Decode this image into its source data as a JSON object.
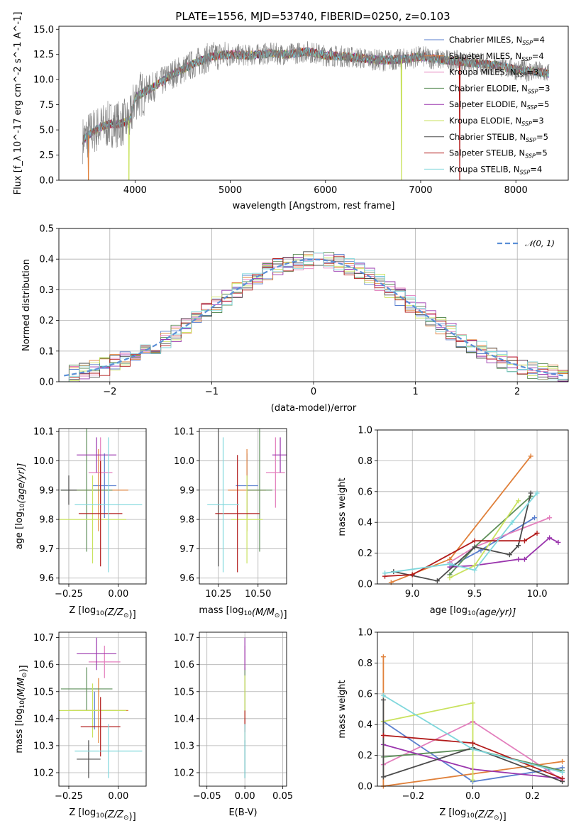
{
  "figure": {
    "title": "PLATE=1556, MJD=53740, FIBERID=0250, z=0.103",
    "colors": {
      "frame": "#000000",
      "grid": "#b0b0b0",
      "spectrum_data": "#7f7f7f",
      "normal_curve": "#5b8fd6",
      "models": [
        "#5a7fcf",
        "#e0803a",
        "#e37fbd",
        "#5e8f5a",
        "#9a35ad",
        "#c9e25e",
        "#4b4b4b",
        "#b21b1b",
        "#7fd7dc"
      ]
    }
  },
  "chart_data": [
    {
      "id": "spectrum",
      "type": "line",
      "title": "PLATE=1556, MJD=53740, FIBERID=0250, z=0.103",
      "xlabel": "wavelength [Angstrom, rest frame]",
      "ylabel": "Flux [f_λ 10^-17 erg cm^-2 s^-1 A^-1]",
      "xlim": [
        3200,
        8550
      ],
      "ylim": [
        0,
        15.3
      ],
      "xticks": [
        4000,
        5000,
        6000,
        7000,
        8000
      ],
      "yticks": [
        0.0,
        2.5,
        5.0,
        7.5,
        10.0,
        12.5,
        15.0
      ],
      "ytick_labels": [
        "0.0",
        "2.5",
        "5.0",
        "7.5",
        "10.0",
        "12.5",
        "15.0"
      ],
      "grid": false,
      "legend_position": "right",
      "continuum": {
        "x": [
          3450,
          3550,
          3650,
          3750,
          3850,
          3950,
          4000,
          4100,
          4200,
          4300,
          4400,
          4500,
          4600,
          4700,
          4800,
          5000,
          5200,
          5400,
          5600,
          5800,
          6000,
          6200,
          6400,
          6600,
          6800,
          7000,
          7200,
          7400,
          7600,
          7800,
          8000,
          8200,
          8350
        ],
        "y": [
          4.0,
          4.8,
          5.3,
          5.6,
          5.6,
          6.0,
          8.2,
          8.8,
          9.3,
          9.9,
          10.6,
          11.0,
          11.5,
          11.9,
          12.3,
          12.5,
          12.4,
          12.6,
          12.5,
          12.8,
          12.4,
          12.3,
          12.1,
          11.9,
          12.0,
          12.3,
          12.0,
          11.8,
          11.6,
          11.4,
          11.0,
          10.8,
          10.6
        ]
      },
      "model_dropouts": [
        {
          "series": "Salpeter MILES, N_SSP=4",
          "x": 3510
        },
        {
          "series": "Kroupa ELODIE, N_SSP=3",
          "x": 3935
        },
        {
          "series": "Kroupa ELODIE, N_SSP=3",
          "x": 6800
        },
        {
          "series": "Salpeter STELIB, N_SSP=5",
          "x": 7410
        }
      ],
      "series": [
        {
          "name": "Chabrier MILES, N_SSP=4",
          "label_base": "Chabrier MILES, N",
          "label_sub": "SSP",
          "label_tail": "=4"
        },
        {
          "name": "Salpeter MILES, N_SSP=4",
          "label_base": "Salpeter MILES, N",
          "label_sub": "SSP",
          "label_tail": "=4"
        },
        {
          "name": "Kroupa MILES, N_SSP=3",
          "label_base": "Kroupa MILES, N",
          "label_sub": "SSP",
          "label_tail": "=3"
        },
        {
          "name": "Chabrier ELODIE, N_SSP=3",
          "label_base": "Chabrier ELODIE, N",
          "label_sub": "SSP",
          "label_tail": "=3"
        },
        {
          "name": "Salpeter ELODIE, N_SSP=5",
          "label_base": "Salpeter ELODIE, N",
          "label_sub": "SSP",
          "label_tail": "=5"
        },
        {
          "name": "Kroupa ELODIE, N_SSP=3",
          "label_base": "Kroupa ELODIE, N",
          "label_sub": "SSP",
          "label_tail": "=3"
        },
        {
          "name": "Chabrier STELIB, N_SSP=5",
          "label_base": "Chabrier STELIB, N",
          "label_sub": "SSP",
          "label_tail": "=5"
        },
        {
          "name": "Salpeter STELIB, N_SSP=5",
          "label_base": "Salpeter STELIB, N",
          "label_sub": "SSP",
          "label_tail": "=5"
        },
        {
          "name": "Kroupa STELIB, N_SSP=4",
          "label_base": "Kroupa STELIB, N",
          "label_sub": "SSP",
          "label_tail": "=4"
        }
      ]
    },
    {
      "id": "residuals",
      "type": "line",
      "xlabel": "(data-model)/error",
      "ylabel": "Normed distribution",
      "xlim": [
        -2.5,
        2.5
      ],
      "ylim": [
        0,
        0.5
      ],
      "xticks": [
        -2,
        -1,
        0,
        1,
        2
      ],
      "xtick_labels": [
        "−2",
        "−1",
        "0",
        "1",
        "2"
      ],
      "yticks": [
        0.0,
        0.1,
        0.2,
        0.3,
        0.4,
        0.5
      ],
      "ytick_labels": [
        "0.0",
        "0.1",
        "0.2",
        "0.3",
        "0.4",
        "0.5"
      ],
      "grid": true,
      "legend_position": "top-right",
      "bin_width": 0.1,
      "histograms_note": "one step histogram per model series; normal reference curve dashed",
      "reference": {
        "name": "N(0,1)",
        "label": "𝒩(0, 1)",
        "x_range": [
          -2.45,
          2.45
        ]
      }
    },
    {
      "id": "age_vs_Z",
      "type": "scatter",
      "xlabel_text": "Z [log",
      "xlabel_sub": "10",
      "xlabel_tail": "(Z/Z",
      "xlabel_sub2": "⊙",
      "xlabel_end": ")]",
      "ylabel": "age [log10(age/yr)]",
      "ylabel_text": "age  [log",
      "ylabel_sub": "10",
      "ylabel_tail": "(age/yr)]",
      "xlim": [
        -0.3,
        0.14
      ],
      "ylim": [
        9.58,
        10.11
      ],
      "xticks": [
        -0.25,
        0.0
      ],
      "xtick_labels": [
        "−0.25",
        "0.00"
      ],
      "yticks": [
        9.6,
        9.7,
        9.8,
        9.9,
        10.0,
        10.1
      ],
      "ytick_labels": [
        "9.6",
        "9.7",
        "9.8",
        "9.9",
        "10.0",
        "10.1"
      ],
      "grid": true,
      "points": [
        {
          "x": -0.07,
          "xerr": 0.06,
          "y": 9.915,
          "yerr": 0.11
        },
        {
          "x": -0.1,
          "xerr": 0.15,
          "y": 9.9,
          "yerr": 0.14
        },
        {
          "x": -0.09,
          "xerr": 0.06,
          "y": 9.96,
          "yerr": 0.12
        },
        {
          "x": -0.16,
          "xerr": 0.13,
          "y": 9.9,
          "yerr": 0.21
        },
        {
          "x": -0.11,
          "xerr": 0.1,
          "y": 10.02,
          "yerr": 0.06
        },
        {
          "x": -0.13,
          "xerr": 0.17,
          "y": 9.8,
          "yerr": 0.15
        },
        {
          "x": -0.25,
          "xerr": 0.04,
          "y": 9.9,
          "yerr": 0.05
        },
        {
          "x": -0.09,
          "xerr": 0.11,
          "y": 9.82,
          "yerr": 0.18
        },
        {
          "x": -0.05,
          "xerr": 0.17,
          "y": 9.85,
          "yerr": 0.23
        }
      ]
    },
    {
      "id": "age_vs_mass",
      "type": "scatter",
      "xlabel_text": "mass [log",
      "xlabel_sub": "10",
      "xlabel_tail": "(M/M",
      "xlabel_sub2": "⊙",
      "xlabel_end": ")]",
      "xlim": [
        10.13,
        10.68
      ],
      "ylim": [
        9.58,
        10.11
      ],
      "xticks": [
        10.25,
        10.5
      ],
      "xtick_labels": [
        "10.25",
        "10.50"
      ],
      "yticks": [
        9.6,
        9.7,
        9.8,
        9.9,
        10.0,
        10.1
      ],
      "ytick_labels": [
        "9.6",
        "9.7",
        "9.8",
        "9.9",
        "10.0",
        "10.1"
      ],
      "grid": true,
      "points": [
        {
          "x": 10.43,
          "xerr": 0.07,
          "y": 9.915,
          "yerr": 0.11
        },
        {
          "x": 10.43,
          "xerr": 0.12,
          "y": 9.9,
          "yerr": 0.14
        },
        {
          "x": 10.61,
          "xerr": 0.06,
          "y": 9.96,
          "yerr": 0.12
        },
        {
          "x": 10.51,
          "xerr": 0.08,
          "y": 9.9,
          "yerr": 0.21
        },
        {
          "x": 10.64,
          "xerr": 0.05,
          "y": 10.02,
          "yerr": 0.06
        },
        {
          "x": 10.43,
          "xerr": 0.1,
          "y": 9.8,
          "yerr": 0.15
        },
        {
          "x": 10.25,
          "xerr": 0.001,
          "y": 9.9,
          "yerr": 0.26
        },
        {
          "x": 10.37,
          "xerr": 0.14,
          "y": 9.82,
          "yerr": 0.2
        },
        {
          "x": 10.28,
          "xerr": 0.1,
          "y": 9.85,
          "yerr": 0.23
        }
      ]
    },
    {
      "id": "weight_vs_age",
      "type": "line",
      "xlabel_text": "age  [log",
      "xlabel_sub": "10",
      "xlabel_tail": "(age/yr)]",
      "ylabel": "mass weight",
      "xlim": [
        8.72,
        10.25
      ],
      "ylim": [
        0,
        1
      ],
      "xticks": [
        9.0,
        9.5,
        10.0
      ],
      "xtick_labels": [
        "9.0",
        "9.5",
        "10.0"
      ],
      "yticks": [
        0.0,
        0.2,
        0.4,
        0.6,
        0.8,
        1.0
      ],
      "ytick_labels": [
        "0.0",
        "0.2",
        "0.4",
        "0.6",
        "0.8",
        "1.0"
      ],
      "grid": true,
      "series": [
        {
          "x": [
            9.32,
            9.55,
            9.98
          ],
          "y": [
            0.12,
            0.22,
            0.43
          ]
        },
        {
          "x": [
            8.83,
            9.3,
            9.95
          ],
          "y": [
            0.01,
            0.16,
            0.83
          ]
        },
        {
          "x": [
            9.3,
            9.5,
            10.1
          ],
          "y": [
            0.14,
            0.24,
            0.43
          ]
        },
        {
          "x": [
            9.3,
            9.5,
            9.95
          ],
          "y": [
            0.06,
            0.24,
            0.57
          ]
        },
        {
          "x": [
            9.3,
            9.5,
            9.85,
            9.9,
            10.1,
            10.17
          ],
          "y": [
            0.11,
            0.12,
            0.16,
            0.16,
            0.3,
            0.27
          ]
        },
        {
          "x": [
            9.3,
            9.5,
            9.85
          ],
          "y": [
            0.04,
            0.12,
            0.54
          ]
        },
        {
          "x": [
            8.85,
            9.2,
            9.5,
            9.78,
            9.85,
            9.95
          ],
          "y": [
            0.08,
            0.02,
            0.24,
            0.19,
            0.25,
            0.59
          ]
        },
        {
          "x": [
            8.78,
            9.0,
            9.5,
            9.9,
            10.0
          ],
          "y": [
            0.05,
            0.06,
            0.28,
            0.28,
            0.33
          ]
        },
        {
          "x": [
            8.78,
            9.3,
            9.5,
            9.8,
            10.0
          ],
          "y": [
            0.07,
            0.13,
            0.09,
            0.4,
            0.59
          ]
        }
      ]
    },
    {
      "id": "mass_vs_Z",
      "type": "scatter",
      "xlabel_text": "Z [log",
      "xlabel_sub": "10",
      "xlabel_tail": "(Z/Z",
      "xlabel_sub2": "⊙",
      "xlabel_end": ")]",
      "ylabel_text": "mass [log",
      "ylabel_sub": "10",
      "ylabel_tail": "(M/M",
      "ylabel_sub2": "⊙",
      "ylabel_end": ")]",
      "xlim": [
        -0.3,
        0.14
      ],
      "ylim": [
        10.15,
        10.72
      ],
      "xticks": [
        -0.25,
        0.0
      ],
      "xtick_labels": [
        "−0.25",
        "0.00"
      ],
      "yticks": [
        10.2,
        10.3,
        10.4,
        10.5,
        10.6,
        10.7
      ],
      "ytick_labels": [
        "10.2",
        "10.3",
        "10.4",
        "10.5",
        "10.6",
        "10.7"
      ],
      "grid": true,
      "points": [
        {
          "x": -0.12,
          "xerr": 0.11,
          "y": 10.43,
          "yerr": 0.07
        },
        {
          "x": -0.1,
          "xerr": 0.15,
          "y": 10.43,
          "yerr": 0.12
        },
        {
          "x": -0.07,
          "xerr": 0.08,
          "y": 10.61,
          "yerr": 0.06
        },
        {
          "x": -0.16,
          "xerr": 0.13,
          "y": 10.51,
          "yerr": 0.08
        },
        {
          "x": -0.11,
          "xerr": 0.1,
          "y": 10.64,
          "yerr": 0.06
        },
        {
          "x": -0.13,
          "xerr": 0.17,
          "y": 10.43,
          "yerr": 0.1
        },
        {
          "x": -0.15,
          "xerr": 0.06,
          "y": 10.25,
          "yerr": 0.07
        },
        {
          "x": -0.09,
          "xerr": 0.1,
          "y": 10.37,
          "yerr": 0.11
        },
        {
          "x": -0.05,
          "xerr": 0.17,
          "y": 10.28,
          "yerr": 0.1
        }
      ]
    },
    {
      "id": "mass_vs_EBV",
      "type": "scatter",
      "xlabel": "E(B-V)",
      "xlim": [
        -0.06,
        0.055
      ],
      "ylim": [
        10.15,
        10.72
      ],
      "xticks": [
        -0.05,
        0.0,
        0.05
      ],
      "xtick_labels": [
        "−0.05",
        "0.00",
        "0.05"
      ],
      "yticks": [
        10.2,
        10.3,
        10.4,
        10.5,
        10.6,
        10.7
      ],
      "ytick_labels": [
        "10.2",
        "10.3",
        "10.4",
        "10.5",
        "10.6",
        "10.7"
      ],
      "grid": true,
      "points": [
        {
          "x": 0.0,
          "xerr": 0,
          "y": 10.43,
          "yerr": 0.07
        },
        {
          "x": 0.0,
          "xerr": 0,
          "y": 10.43,
          "yerr": 0.12
        },
        {
          "x": 0.0,
          "xerr": 0,
          "y": 10.61,
          "yerr": 0.06
        },
        {
          "x": 0.0,
          "xerr": 0,
          "y": 10.51,
          "yerr": 0.08
        },
        {
          "x": 0.0,
          "xerr": 0,
          "y": 10.64,
          "yerr": 0.06
        },
        {
          "x": 0.0,
          "xerr": 0,
          "y": 10.48,
          "yerr": 0.08
        },
        {
          "x": 0.0,
          "xerr": 0,
          "y": 10.25,
          "yerr": 0.07
        },
        {
          "x": 0.0,
          "xerr": 0,
          "y": 10.39,
          "yerr": 0.04
        },
        {
          "x": 0.0,
          "xerr": 0,
          "y": 10.28,
          "yerr": 0.1
        }
      ]
    },
    {
      "id": "weight_vs_Z",
      "type": "line",
      "xlabel_text": "Z [log",
      "xlabel_sub": "10",
      "xlabel_tail": "(Z/Z",
      "xlabel_sub2": "⊙",
      "xlabel_end": ")]",
      "ylabel": "mass weight",
      "xlim": [
        -0.32,
        0.32
      ],
      "ylim": [
        0,
        1
      ],
      "xticks": [
        -0.2,
        0.0,
        0.2
      ],
      "xtick_labels": [
        "−0.2",
        "0.0",
        "0.2"
      ],
      "yticks": [
        0.0,
        0.2,
        0.4,
        0.6,
        0.8,
        1.0
      ],
      "ytick_labels": [
        "0.0",
        "0.2",
        "0.4",
        "0.6",
        "0.8",
        "1.0"
      ],
      "grid": true,
      "series": [
        {
          "x": [
            -0.3,
            0.0,
            0.3
          ],
          "y": [
            0.42,
            0.03,
            0.12
          ]
        },
        {
          "x": [
            -0.3,
            -0.3,
            0.0,
            0.3
          ],
          "y": [
            0.84,
            0.0,
            0.08,
            0.16
          ]
        },
        {
          "x": [
            -0.3,
            0.0,
            0.3
          ],
          "y": [
            0.14,
            0.42,
            0.04
          ]
        },
        {
          "x": [
            -0.3,
            0.0,
            0.3
          ],
          "y": [
            0.19,
            0.24,
            0.1
          ]
        },
        {
          "x": [
            -0.3,
            0.0,
            0.3
          ],
          "y": [
            0.27,
            0.11,
            0.05
          ]
        },
        {
          "x": [
            -0.3,
            0.0,
            0.0
          ],
          "y": [
            0.42,
            0.54,
            0.04
          ]
        },
        {
          "x": [
            -0.3,
            -0.3,
            0.0,
            0.3
          ],
          "y": [
            0.56,
            0.06,
            0.25,
            0.03
          ]
        },
        {
          "x": [
            -0.3,
            0.0,
            0.3
          ],
          "y": [
            0.33,
            0.28,
            0.05
          ]
        },
        {
          "x": [
            -0.3,
            0.0,
            0.3
          ],
          "y": [
            0.59,
            0.24,
            0.09
          ]
        }
      ]
    }
  ]
}
